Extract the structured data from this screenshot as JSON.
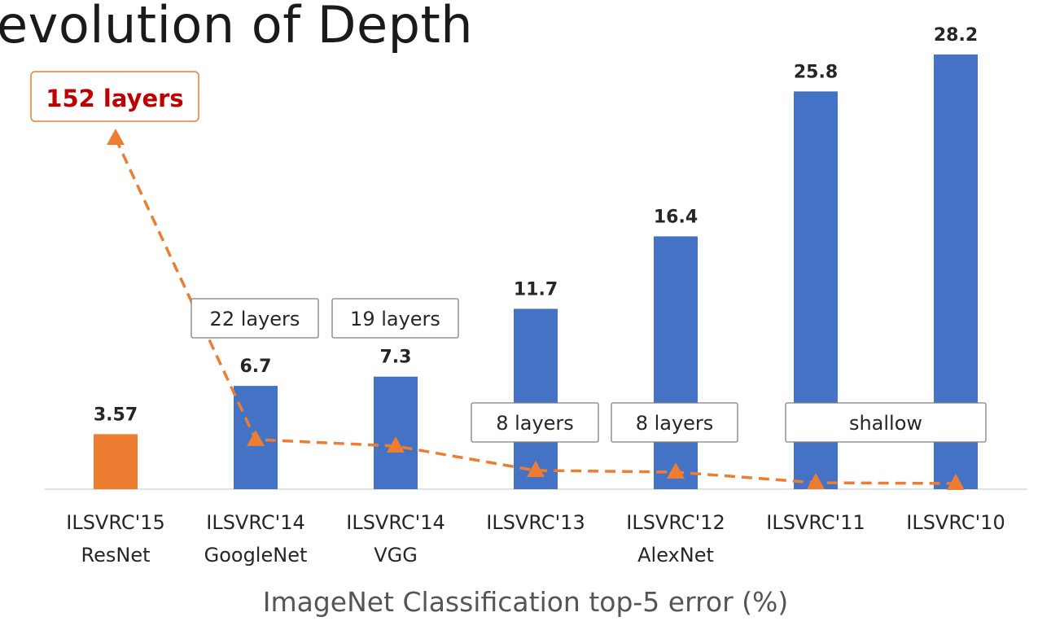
{
  "slide": {
    "title": "evolution of Depth",
    "resnet_annotation": "152 layers"
  },
  "chart_data": {
    "type": "bar",
    "title": "",
    "xlabel": "ImageNet Classification top-5 error (%)",
    "ylabel": "",
    "ylim": [
      0,
      30
    ],
    "grid": false,
    "legend": "none",
    "categories": [
      [
        "ILSVRC'15",
        "ResNet"
      ],
      [
        "ILSVRC'14",
        "GoogleNet"
      ],
      [
        "ILSVRC'14",
        "VGG"
      ],
      [
        "ILSVRC'13"
      ],
      [
        "ILSVRC'12",
        "AlexNet"
      ],
      [
        "ILSVRC'11"
      ],
      [
        "ILSVRC'10"
      ]
    ],
    "values": [
      3.57,
      6.7,
      7.3,
      11.7,
      16.4,
      25.8,
      28.2
    ],
    "value_labels": [
      "3.57",
      "6.7",
      "7.3",
      "11.7",
      "16.4",
      "25.8",
      "28.2"
    ],
    "bar_colors": [
      "#ed7d31",
      "#4472c4",
      "#4472c4",
      "#4472c4",
      "#4472c4",
      "#4472c4",
      "#4472c4"
    ],
    "depth_labels": [
      "22 layers",
      "19 layers",
      "8 layers",
      "8 layers",
      "shallow"
    ],
    "depth_line": {
      "color": "#ed7d31",
      "style": "dashed",
      "marker": "triangle",
      "layers": [
        152,
        22,
        19,
        8,
        8,
        0,
        0
      ]
    }
  },
  "colors": {
    "bar_blue": "#4472c4",
    "bar_orange": "#ed7d31",
    "annotation_red": "#c00000",
    "box_border": "#7f7f7f",
    "axis_line": "#d9d9d9",
    "text_dark": "#262626",
    "text_gray": "#595959"
  }
}
